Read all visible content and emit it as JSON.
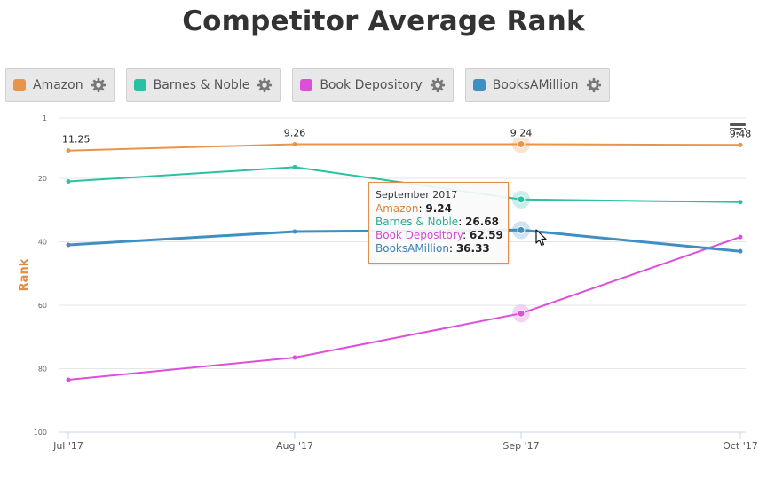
{
  "title": "Competitor Average Rank",
  "legend": [
    {
      "label": "Amazon",
      "color": "#e8944a"
    },
    {
      "label": "Barnes & Noble",
      "color": "#2bbfa4"
    },
    {
      "label": "Book Depository",
      "color": "#dd4fdb"
    },
    {
      "label": "BooksAMillion",
      "color": "#3f8fc2"
    }
  ],
  "tooltip": {
    "header": "September 2017",
    "rows": [
      {
        "name": "Amazon",
        "value": "9.24",
        "color": "#d8853e"
      },
      {
        "name": "Barnes & Noble",
        "value": "26.68",
        "color": "#2aa993"
      },
      {
        "name": "Book Depository",
        "value": "62.59",
        "color": "#d24bd0"
      },
      {
        "name": "BooksAMillion",
        "value": "36.33",
        "color": "#3a84b4"
      }
    ]
  },
  "chart_data": {
    "type": "line",
    "title": "Competitor Average Rank",
    "xlabel": "",
    "ylabel": "Rank",
    "categories": [
      "Jul '17",
      "Aug '17",
      "Sep '17",
      "Oct '17"
    ],
    "y_ticks": [
      "1",
      "20",
      "40",
      "60",
      "80",
      "100"
    ],
    "y_tick_values": [
      1,
      20,
      40,
      60,
      80,
      100
    ],
    "ylim": [
      1,
      100
    ],
    "y_reversed": true,
    "grid": true,
    "series": [
      {
        "name": "Amazon",
        "color": "#e8944a",
        "values": [
          11.25,
          9.26,
          9.24,
          9.48
        ],
        "data_labels": [
          "11.25",
          "9.26",
          "9.24",
          "9.48"
        ]
      },
      {
        "name": "Barnes & Noble",
        "color": "#2bbfa4",
        "values": [
          21,
          16.5,
          26.68,
          27.5
        ]
      },
      {
        "name": "Book Depository",
        "color": "#dd4fdb",
        "values": [
          83.5,
          76.5,
          62.59,
          38.5
        ]
      },
      {
        "name": "BooksAMillion",
        "color": "#3f8fc2",
        "values": [
          41,
          36.8,
          36.33,
          43
        ]
      }
    ],
    "highlight_index": 2
  }
}
